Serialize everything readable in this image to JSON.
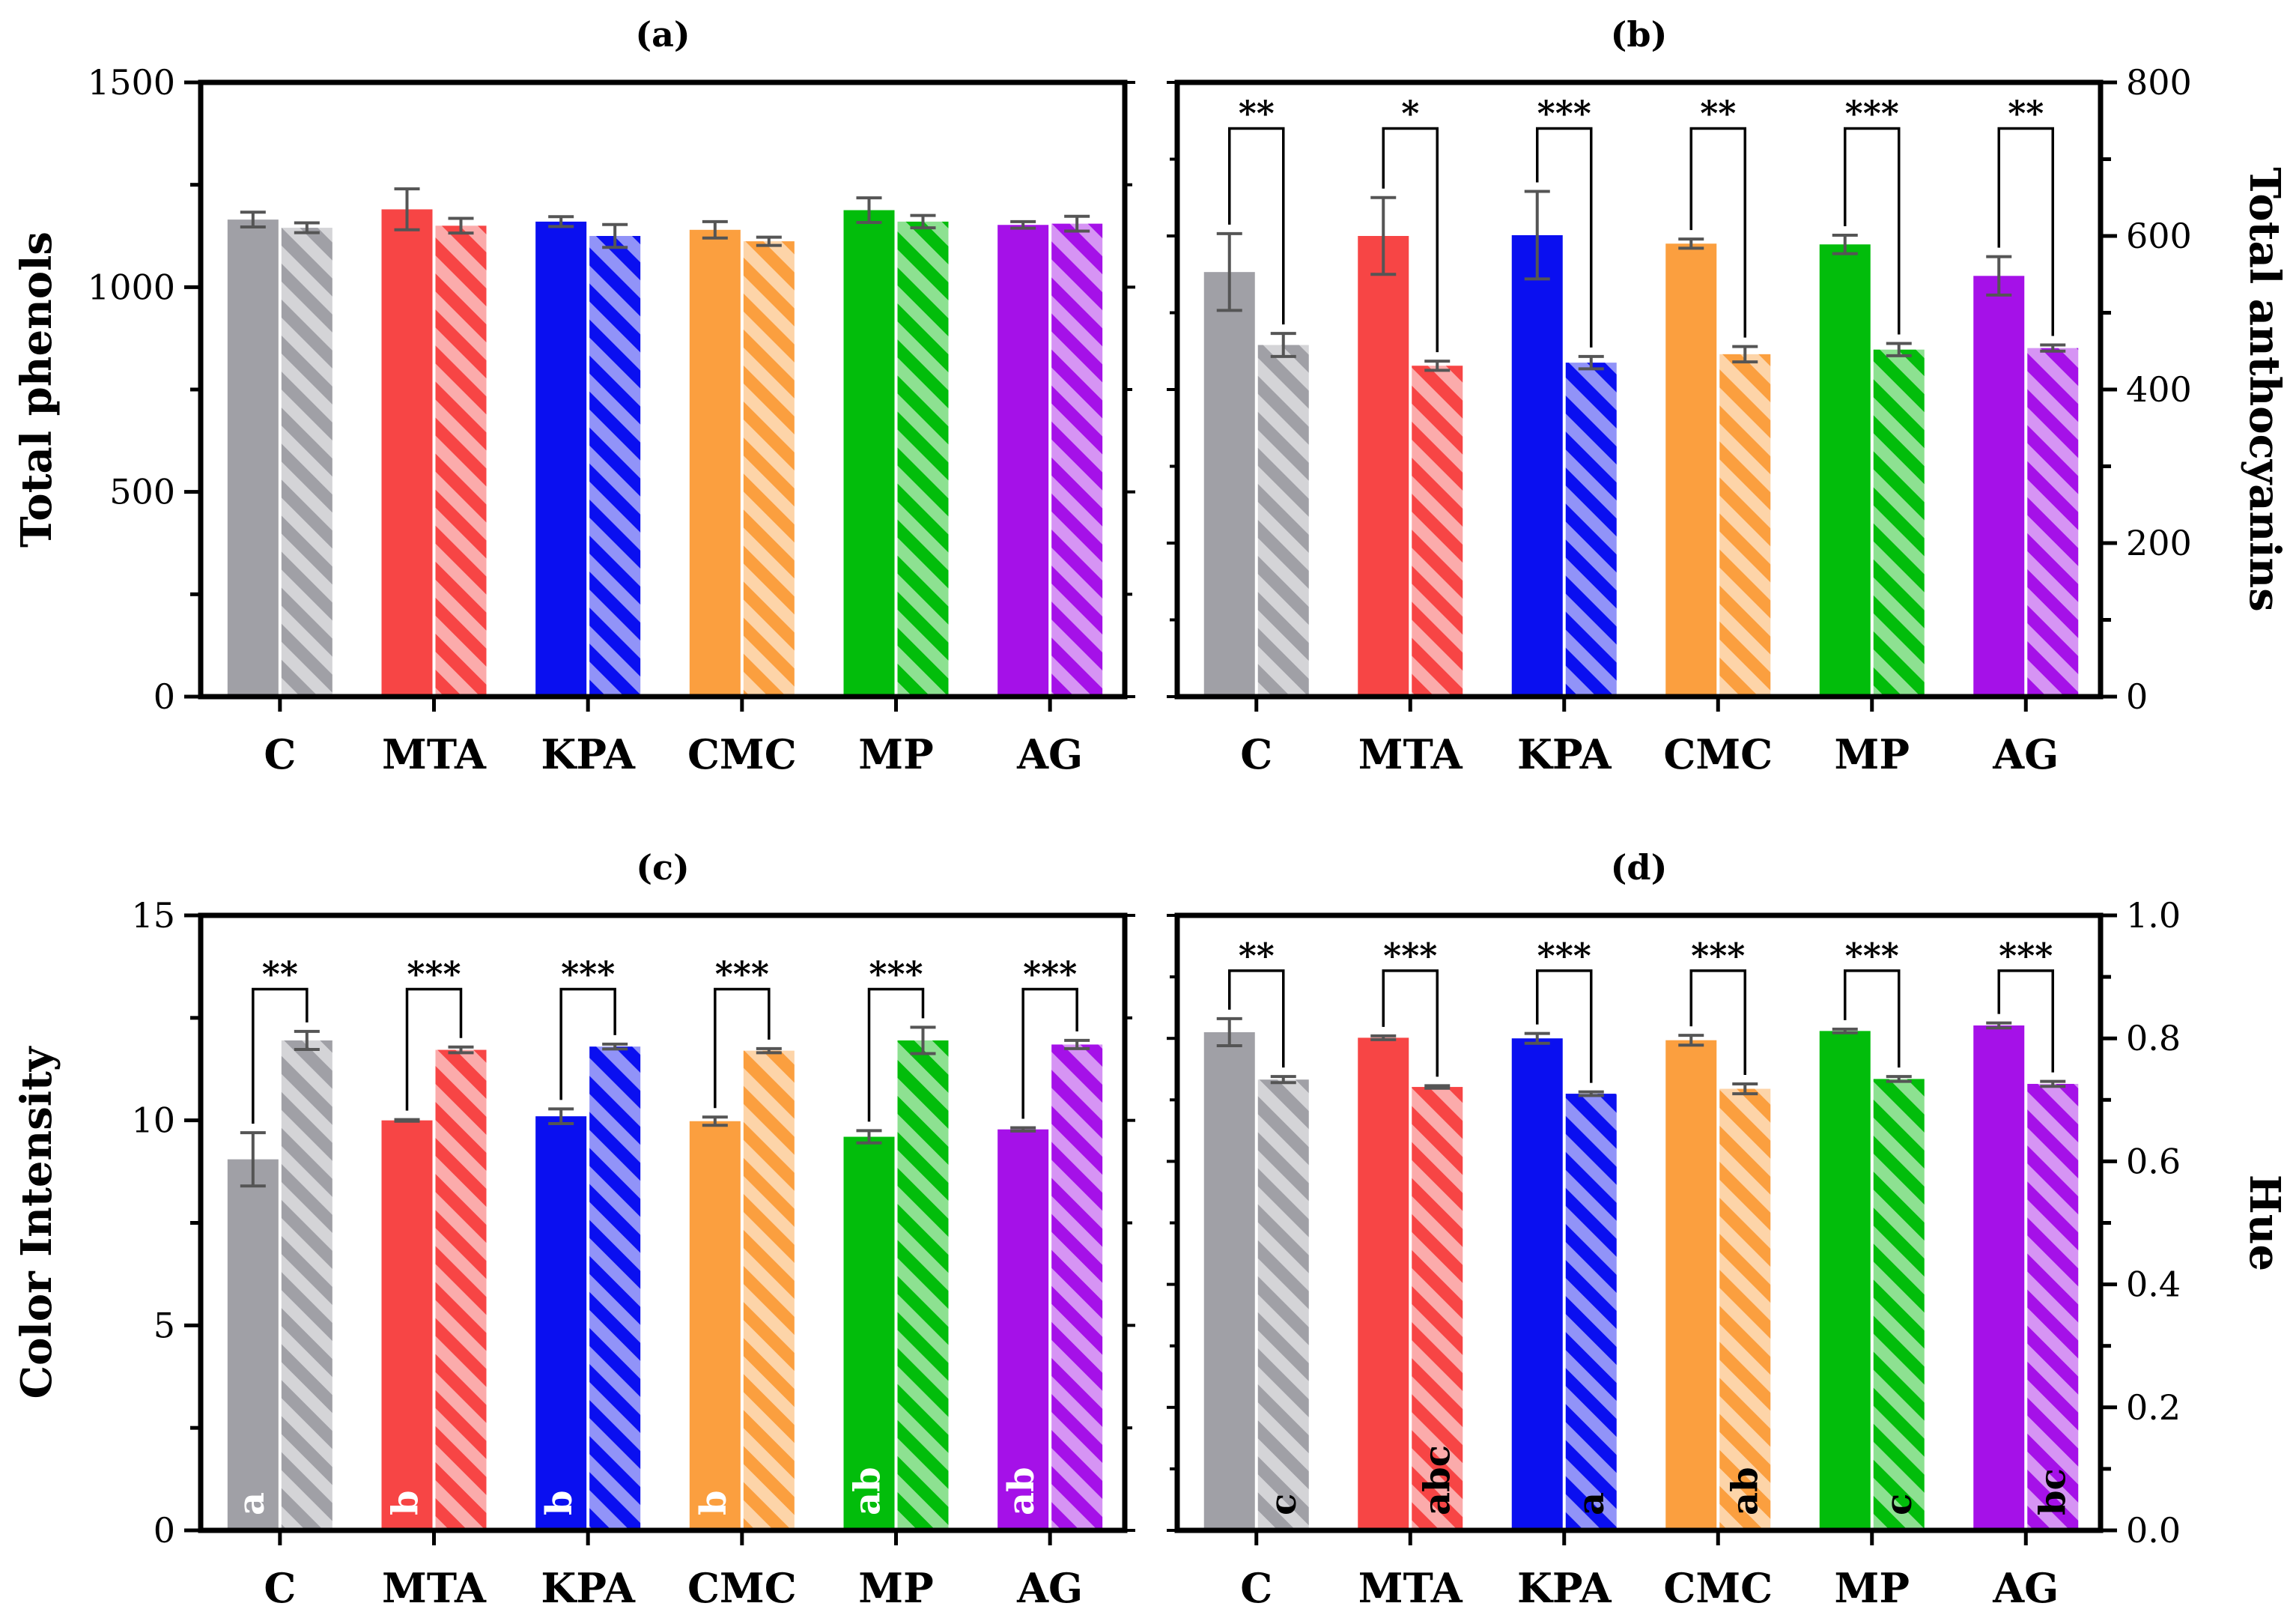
{
  "figure": {
    "colors": {
      "C": "#a0a0a6",
      "MTA": "#f74545",
      "KPA": "#0a0ff0",
      "CMC": "#fb9f3f",
      "MP": "#02bd0b",
      "AG": "#a511e8",
      "errorbar": "#555555",
      "axis": "#000000"
    }
  },
  "chart_data": [
    {
      "id": "a",
      "type": "bar",
      "title": "(a)",
      "ylabel": "Total phenols",
      "yaxis_side": "left",
      "ylim": [
        0,
        1500
      ],
      "ytick_labels": [
        "0",
        "500",
        "1000",
        "1500"
      ],
      "categories": [
        "C",
        "MTA",
        "KPA",
        "CMC",
        "MP",
        "AG"
      ],
      "series": [
        {
          "name": "solid",
          "values": [
            1165,
            1190,
            1160,
            1140,
            1188,
            1152
          ],
          "errors": [
            18,
            50,
            12,
            20,
            30,
            8
          ]
        },
        {
          "name": "hatched",
          "values": [
            1145,
            1150,
            1125,
            1112,
            1160,
            1155
          ],
          "errors": [
            12,
            18,
            28,
            10,
            15,
            18
          ]
        }
      ],
      "significance": [
        "",
        "",
        "",
        "",
        "",
        ""
      ],
      "letters_solid": [
        "",
        "",
        "",
        "",
        "",
        ""
      ],
      "letters_hatched": [
        "",
        "",
        "",
        "",
        "",
        ""
      ]
    },
    {
      "id": "b",
      "type": "bar",
      "title": "(b)",
      "ylabel": "Total anthocyanins",
      "yaxis_side": "right",
      "ylim": [
        0,
        800
      ],
      "ytick_labels": [
        "0",
        "200",
        "400",
        "600",
        "800"
      ],
      "categories": [
        "C",
        "MTA",
        "KPA",
        "CMC",
        "MP",
        "AG"
      ],
      "series": [
        {
          "name": "solid",
          "values": [
            553,
            600,
            601,
            590,
            589,
            548
          ],
          "errors": [
            50,
            50,
            57,
            6,
            12,
            25
          ]
        },
        {
          "name": "hatched",
          "values": [
            458,
            431,
            435,
            446,
            452,
            454
          ],
          "errors": [
            15,
            6,
            8,
            10,
            8,
            4
          ]
        }
      ],
      "significance": [
        "**",
        "*",
        "***",
        "**",
        "***",
        "**"
      ],
      "letters_solid": [
        "",
        "",
        "",
        "",
        "",
        ""
      ],
      "letters_hatched": [
        "",
        "",
        "",
        "",
        "",
        ""
      ]
    },
    {
      "id": "c",
      "type": "bar",
      "title": "(c)",
      "ylabel": "Color Intensity",
      "yaxis_side": "left",
      "ylim": [
        0,
        15
      ],
      "ytick_labels": [
        "0",
        "5",
        "10",
        "15"
      ],
      "categories": [
        "C",
        "MTA",
        "KPA",
        "CMC",
        "MP",
        "AG"
      ],
      "series": [
        {
          "name": "solid",
          "values": [
            9.05,
            10.0,
            10.1,
            9.98,
            9.6,
            9.78
          ],
          "errors": [
            0.65,
            0.02,
            0.18,
            0.1,
            0.15,
            0.04
          ]
        },
        {
          "name": "hatched",
          "values": [
            11.95,
            11.72,
            11.8,
            11.7,
            11.95,
            11.85
          ],
          "errors": [
            0.22,
            0.07,
            0.06,
            0.05,
            0.32,
            0.1
          ]
        }
      ],
      "significance": [
        "**",
        "***",
        "***",
        "***",
        "***",
        "***"
      ],
      "letters_solid": [
        "a",
        "b",
        "b",
        "b",
        "ab",
        "ab"
      ],
      "letters_hatched": [
        "",
        "",
        "",
        "",
        "",
        ""
      ]
    },
    {
      "id": "d",
      "type": "bar",
      "title": "(d)",
      "ylabel": "Hue",
      "yaxis_side": "right",
      "ylim": [
        0,
        1.0
      ],
      "ytick_labels": [
        "0.0",
        "0.2",
        "0.4",
        "0.6",
        "0.8",
        "1.0"
      ],
      "categories": [
        "C",
        "MTA",
        "KPA",
        "CMC",
        "MP",
        "AG"
      ],
      "series": [
        {
          "name": "solid",
          "values": [
            0.81,
            0.801,
            0.8,
            0.797,
            0.812,
            0.821
          ],
          "errors": [
            0.022,
            0.003,
            0.008,
            0.008,
            0.003,
            0.004
          ]
        },
        {
          "name": "hatched",
          "values": [
            0.733,
            0.721,
            0.71,
            0.718,
            0.734,
            0.726
          ],
          "errors": [
            0.005,
            0.002,
            0.003,
            0.008,
            0.004,
            0.004
          ]
        }
      ],
      "significance": [
        "**",
        "***",
        "***",
        "***",
        "***",
        "***"
      ],
      "letters_solid": [
        "",
        "",
        "",
        "",
        "",
        ""
      ],
      "letters_hatched": [
        "c",
        "abc",
        "a",
        "ab",
        "c",
        "bc"
      ]
    }
  ]
}
